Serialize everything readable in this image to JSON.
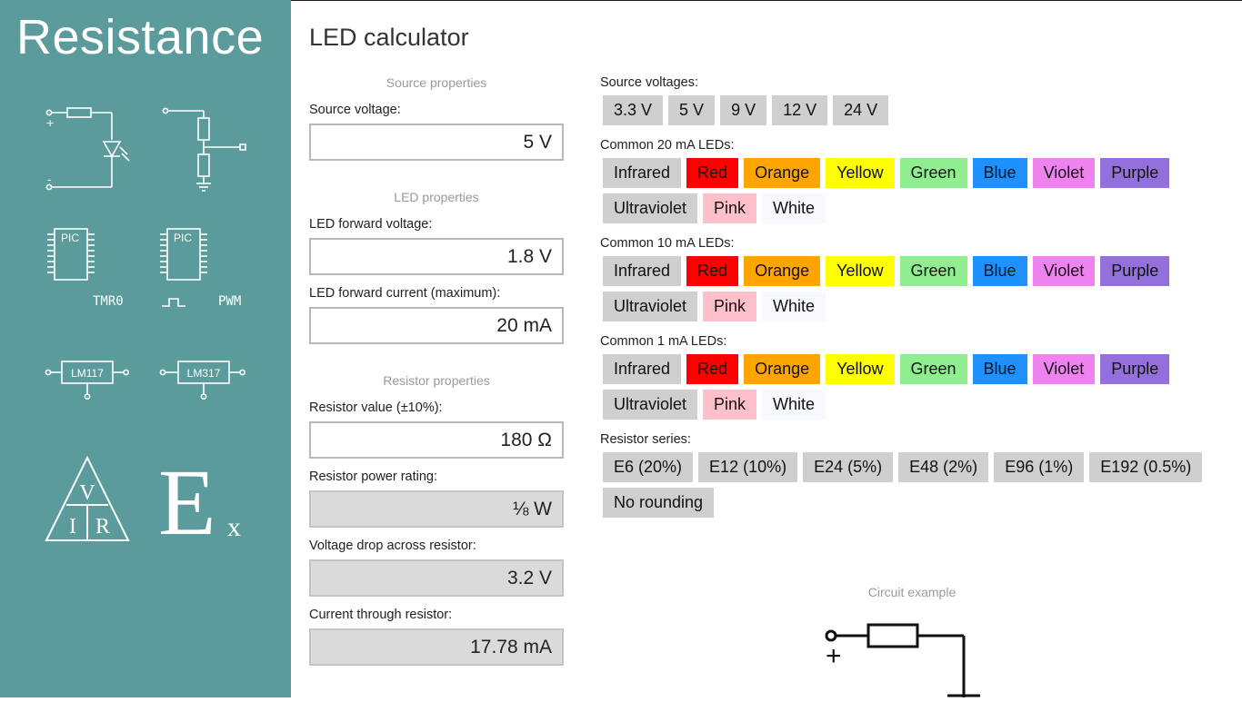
{
  "app": {
    "title": "Resistance"
  },
  "sidebar": {
    "icons": [
      {
        "icon": "led-circuit-icon",
        "plus": "+",
        "minus": "-"
      },
      {
        "icon": "voltage-divider-icon"
      },
      {
        "icon": "pic-tmr0-icon",
        "chip": "PIC",
        "caption": "TMR0"
      },
      {
        "icon": "pic-pwm-icon",
        "chip": "PIC",
        "caption": "PWM"
      },
      {
        "icon": "lm117-icon",
        "chip": "LM117"
      },
      {
        "icon": "lm317-icon",
        "chip": "LM317"
      },
      {
        "icon": "ohms-law-triangle-icon",
        "v": "V",
        "i": "I",
        "r": "R"
      },
      {
        "icon": "e-series-icon",
        "e": "E",
        "x": "x"
      }
    ]
  },
  "page": {
    "title": "LED calculator"
  },
  "source": {
    "header": "Source properties",
    "voltage_label": "Source voltage:",
    "voltage_value": "5 V"
  },
  "led": {
    "header": "LED properties",
    "fv_label": "LED forward voltage:",
    "fv_value": "1.8 V",
    "fc_label": "LED forward current (maximum):",
    "fc_value": "20 mA"
  },
  "resistor": {
    "header": "Resistor properties",
    "value_label": "Resistor value (±10%):",
    "value": "180 Ω",
    "power_label": "Resistor power rating:",
    "power": "⅛ W",
    "drop_label": "Voltage drop across resistor:",
    "drop": "3.2 V",
    "current_label": "Current through resistor:",
    "current": "17.78 mA"
  },
  "presets": {
    "voltages_label": "Source voltages:",
    "voltages": [
      "3.3 V",
      "5 V",
      "9 V",
      "12 V",
      "24 V"
    ],
    "led20_label": "Common 20 mA LEDs:",
    "led10_label": "Common 10 mA LEDs:",
    "led1_label": "Common 1 mA LEDs:",
    "leds_row1": [
      "Infrared",
      "Red",
      "Orange",
      "Yellow",
      "Green",
      "Blue",
      "Violet",
      "Purple"
    ],
    "leds_row2": [
      "Ultraviolet",
      "Pink",
      "White"
    ],
    "led_colors": {
      "Infrared": "#cfcfcf",
      "Red": "#ff0000",
      "Orange": "#ffa500",
      "Yellow": "#ffff00",
      "Green": "#90ee90",
      "Blue": "#1e90ff",
      "Violet": "#ee82ee",
      "Purple": "#9370db",
      "Ultraviolet": "#cfcfcf",
      "Pink": "#ffc0cb",
      "White": "#f8f8ff"
    },
    "series_label": "Resistor series:",
    "series_row1": [
      "E6 (20%)",
      "E12 (10%)",
      "E24 (5%)",
      "E48 (2%)",
      "E96 (1%)",
      "E192 (0.5%)"
    ],
    "series_row2": [
      "No rounding"
    ]
  },
  "circuit": {
    "label": "Circuit example",
    "plus": "+"
  }
}
